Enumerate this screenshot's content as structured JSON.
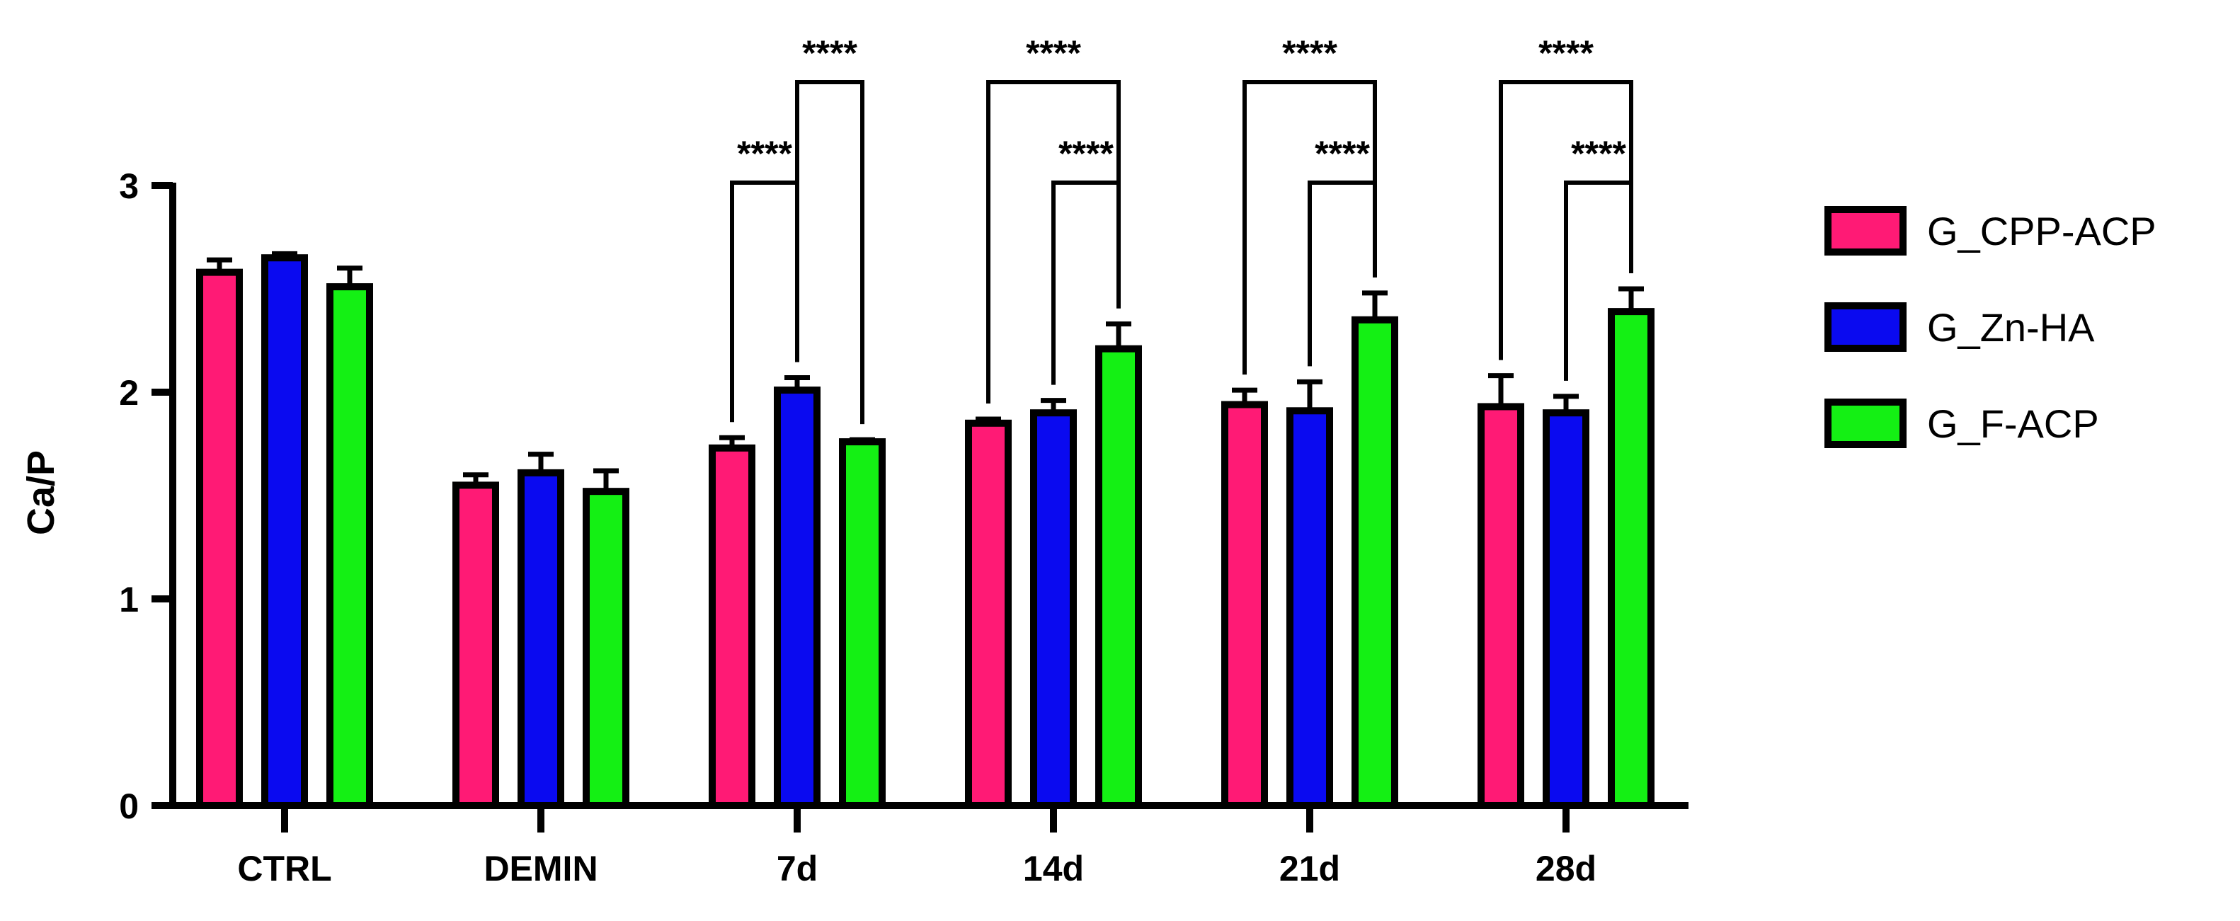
{
  "chart_data": {
    "type": "bar",
    "title": "",
    "xlabel": "",
    "ylabel": "Ca/P",
    "ylim": [
      0,
      3
    ],
    "yticks": [
      "0",
      "1",
      "2",
      "3"
    ],
    "categories": [
      "CTRL",
      "DEMIN",
      "7d",
      "14d",
      "21d",
      "28d"
    ],
    "series": [
      {
        "name": "G_CPP-ACP",
        "color": "#ff1a75",
        "values": [
          2.58,
          1.55,
          1.73,
          1.85,
          1.94,
          1.93
        ],
        "errors": [
          0.06,
          0.05,
          0.05,
          0.02,
          0.07,
          0.15
        ]
      },
      {
        "name": "G_Zn-HA",
        "color": "#0a0af0",
        "values": [
          2.65,
          1.61,
          2.01,
          1.9,
          1.91,
          1.9
        ],
        "errors": [
          0.02,
          0.09,
          0.06,
          0.06,
          0.14,
          0.08
        ]
      },
      {
        "name": "G_F-ACP",
        "color": "#14f014",
        "values": [
          2.51,
          1.52,
          1.76,
          2.21,
          2.35,
          2.39
        ],
        "errors": [
          0.09,
          0.1,
          0.01,
          0.12,
          0.13,
          0.11
        ]
      }
    ],
    "significance": [
      {
        "category": "7d",
        "from": 0,
        "to": 1,
        "label": "****",
        "level": 0
      },
      {
        "category": "7d",
        "from": 1,
        "to": 2,
        "label": "****",
        "level": 1
      },
      {
        "category": "14d",
        "from": 1,
        "to": 2,
        "label": "****",
        "level": 0
      },
      {
        "category": "14d",
        "from": 0,
        "to": 2,
        "label": "****",
        "level": 1
      },
      {
        "category": "21d",
        "from": 1,
        "to": 2,
        "label": "****",
        "level": 0
      },
      {
        "category": "21d",
        "from": 0,
        "to": 2,
        "label": "****",
        "level": 1
      },
      {
        "category": "28d",
        "from": 1,
        "to": 2,
        "label": "****",
        "level": 0
      },
      {
        "category": "28d",
        "from": 0,
        "to": 2,
        "label": "****",
        "level": 1
      }
    ],
    "grid": false,
    "legend_position": "right"
  }
}
